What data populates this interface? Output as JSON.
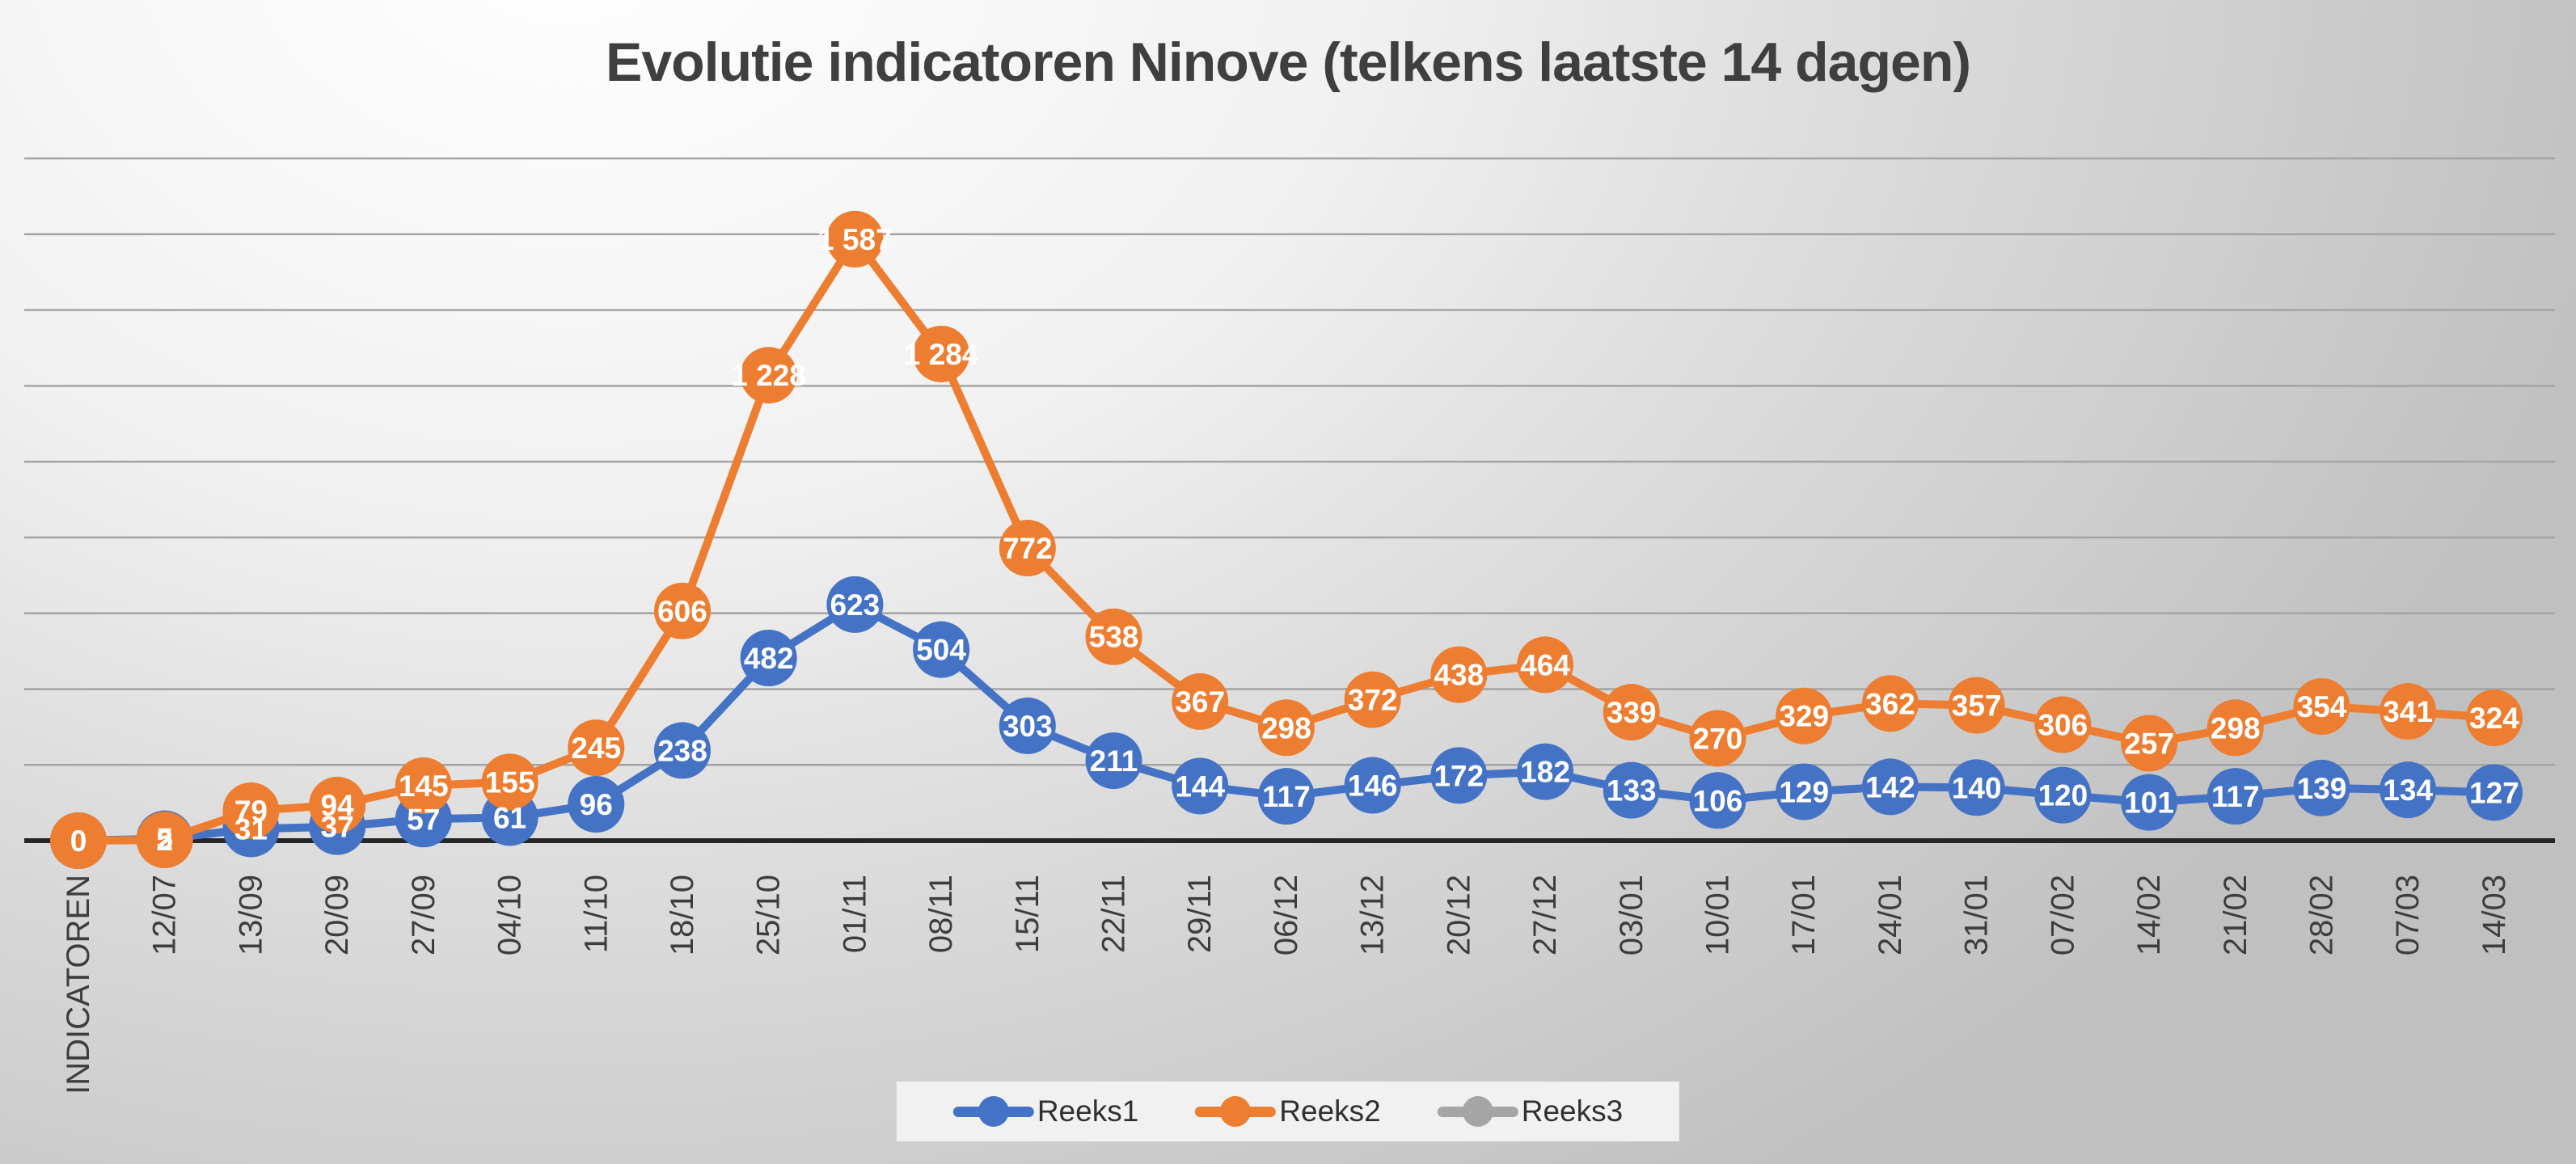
{
  "chart_data": {
    "type": "line",
    "title": "Evolutie indicatoren Ninove (telkens laatste 14 dagen)",
    "categories": [
      "INDICATOREN",
      "12/07",
      "13/09",
      "20/09",
      "27/09",
      "04/10",
      "11/10",
      "18/10",
      "25/10",
      "01/11",
      "08/11",
      "15/11",
      "22/11",
      "29/11",
      "06/12",
      "13/12",
      "20/12",
      "27/12",
      "03/01",
      "10/01",
      "17/01",
      "24/01",
      "31/01",
      "07/02",
      "14/02",
      "21/02",
      "28/02",
      "07/03",
      "14/03"
    ],
    "series": [
      {
        "name": "Reeks1",
        "color": "#4472C4",
        "values": [
          0,
          5,
          31,
          37,
          57,
          61,
          96,
          238,
          482,
          623,
          504,
          303,
          211,
          144,
          117,
          146,
          172,
          182,
          133,
          106,
          129,
          142,
          140,
          120,
          101,
          117,
          139,
          134,
          127
        ],
        "labels": [
          "0",
          "5",
          "31",
          "37",
          "57",
          "61",
          "96",
          "238",
          "482",
          "623",
          "504",
          "303",
          "211",
          "144",
          "117",
          "146",
          "172",
          "182",
          "133",
          "106",
          "129",
          "142",
          "140",
          "120",
          "101",
          "117",
          "139",
          "134",
          "127"
        ]
      },
      {
        "name": "Reeks2",
        "color": "#ED7D31",
        "values": [
          0,
          2,
          79,
          94,
          145,
          155,
          245,
          606,
          1228,
          1587,
          1284,
          772,
          538,
          367,
          298,
          372,
          438,
          464,
          339,
          270,
          329,
          362,
          357,
          306,
          257,
          298,
          354,
          341,
          324
        ],
        "labels": [
          "0",
          "2",
          "79",
          "94",
          "145",
          "155",
          "245",
          "606",
          "1 228",
          "1 587",
          "1 284",
          "772",
          "538",
          "367",
          "298",
          "372",
          "438",
          "464",
          "339",
          "270",
          "329",
          "362",
          "357",
          "306",
          "257",
          "298",
          "354",
          "341",
          "324"
        ]
      },
      {
        "name": "Reeks3",
        "color": "#A5A5A5",
        "values": [],
        "labels": []
      }
    ],
    "ylim": [
      0,
      1800
    ],
    "gridline_step": 200,
    "y_axis_labels_visible": false,
    "grid": true,
    "legend_position": "bottom"
  }
}
